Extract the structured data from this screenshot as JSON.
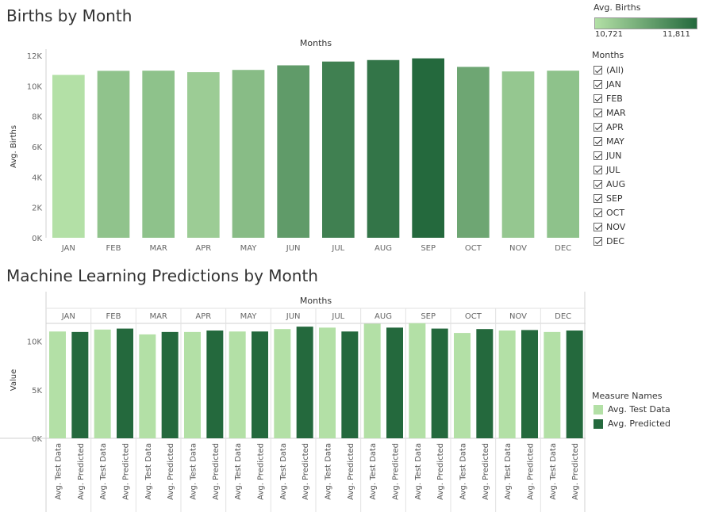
{
  "colors": {
    "light": "#b3e0a6",
    "dark": "#24693d",
    "grad_start": "#b3e0a6",
    "grad_end": "#24693d",
    "axis": "#999999",
    "tick_text": "#666666"
  },
  "chart_data": [
    {
      "type": "bar",
      "title": "Births by Month",
      "xlabel": "Months",
      "ylabel": "Avg. Births",
      "categories": [
        "JAN",
        "FEB",
        "MAR",
        "APR",
        "MAY",
        "JUN",
        "JUL",
        "AUG",
        "SEP",
        "OCT",
        "NOV",
        "DEC"
      ],
      "values": [
        10721,
        10990,
        11000,
        10900,
        11050,
        11350,
        11600,
        11700,
        11811,
        11250,
        10950,
        11000
      ],
      "ylim": [
        0,
        12000
      ],
      "yticks": [
        "0K",
        "2K",
        "4K",
        "6K",
        "8K",
        "10K",
        "12K"
      ],
      "color_legend": {
        "title": "Avg. Births",
        "min_label": "10,721",
        "max_label": "11,811"
      },
      "filter": {
        "title": "Months",
        "items": [
          "(All)",
          "JAN",
          "FEB",
          "MAR",
          "APR",
          "MAY",
          "JUN",
          "JUL",
          "AUG",
          "SEP",
          "OCT",
          "NOV",
          "DEC"
        ]
      }
    },
    {
      "type": "bar",
      "title": "Machine Learning Predictions by Month",
      "xlabel": "Months",
      "ylabel": "Value",
      "categories": [
        "JAN",
        "FEB",
        "MAR",
        "APR",
        "MAY",
        "JUN",
        "JUL",
        "AUG",
        "SEP",
        "OCT",
        "NOV",
        "DEC"
      ],
      "bar_labels": [
        "Avg. Test Data",
        "Avg. Predicted"
      ],
      "series": [
        {
          "name": "Avg. Test Data",
          "values": [
            11000,
            11200,
            10700,
            10950,
            11000,
            11250,
            11400,
            11800,
            11850,
            10850,
            11100,
            10950
          ]
        },
        {
          "name": "Avg. Predicted",
          "values": [
            10950,
            11300,
            10950,
            11100,
            11000,
            11500,
            11000,
            11400,
            11300,
            11250,
            11150,
            11100
          ]
        }
      ],
      "ylim": [
        0,
        12000
      ],
      "yticks": [
        "0K",
        "5K",
        "10K"
      ],
      "legend": {
        "title": "Measure Names",
        "items": [
          "Avg. Test Data",
          "Avg. Predicted"
        ]
      }
    }
  ]
}
